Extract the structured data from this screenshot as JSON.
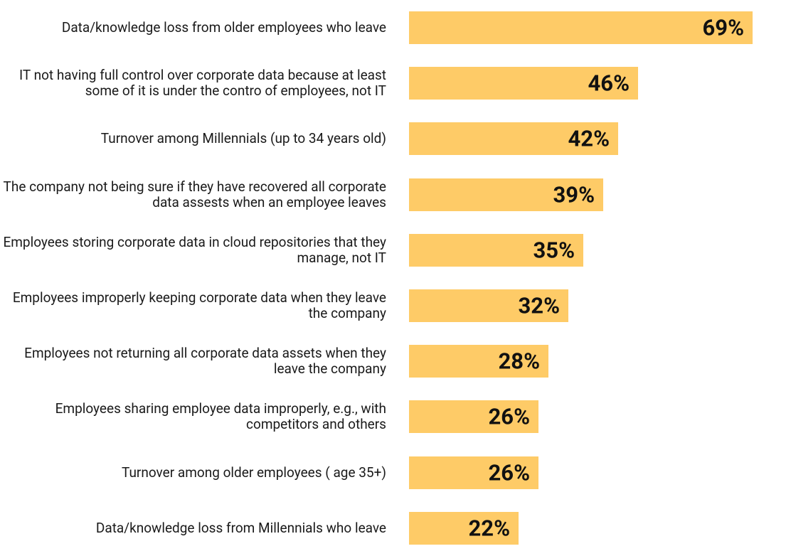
{
  "chart_data": {
    "type": "bar",
    "orientation": "horizontal",
    "color": "#fecb67",
    "categories": [
      "Data/knowledge loss from older employees who leave",
      "IT not having full control over corporate data because at least some of it is under the contro of employees, not IT",
      "Turnover among Millennials (up to 34 years old)",
      "The company not being sure if they have recovered all corporate data assests when an employee leaves",
      "Employees storing corporate data in cloud repositories that they manage, not IT",
      "Employees improperly keeping corporate data when they leave the company",
      "Employees not returning all corporate data assets when they leave the company",
      "Employees sharing employee data improperly, e.g., with competitors and others",
      "Turnover among older employees ( age 35+)",
      "Data/knowledge loss from Millennials who leave"
    ],
    "values": [
      69,
      46,
      42,
      39,
      35,
      32,
      28,
      26,
      26,
      22
    ],
    "value_labels": [
      "69%",
      "46%",
      "42%",
      "39%",
      "35%",
      "32%",
      "28%",
      "26%",
      "26%",
      "22%"
    ]
  }
}
